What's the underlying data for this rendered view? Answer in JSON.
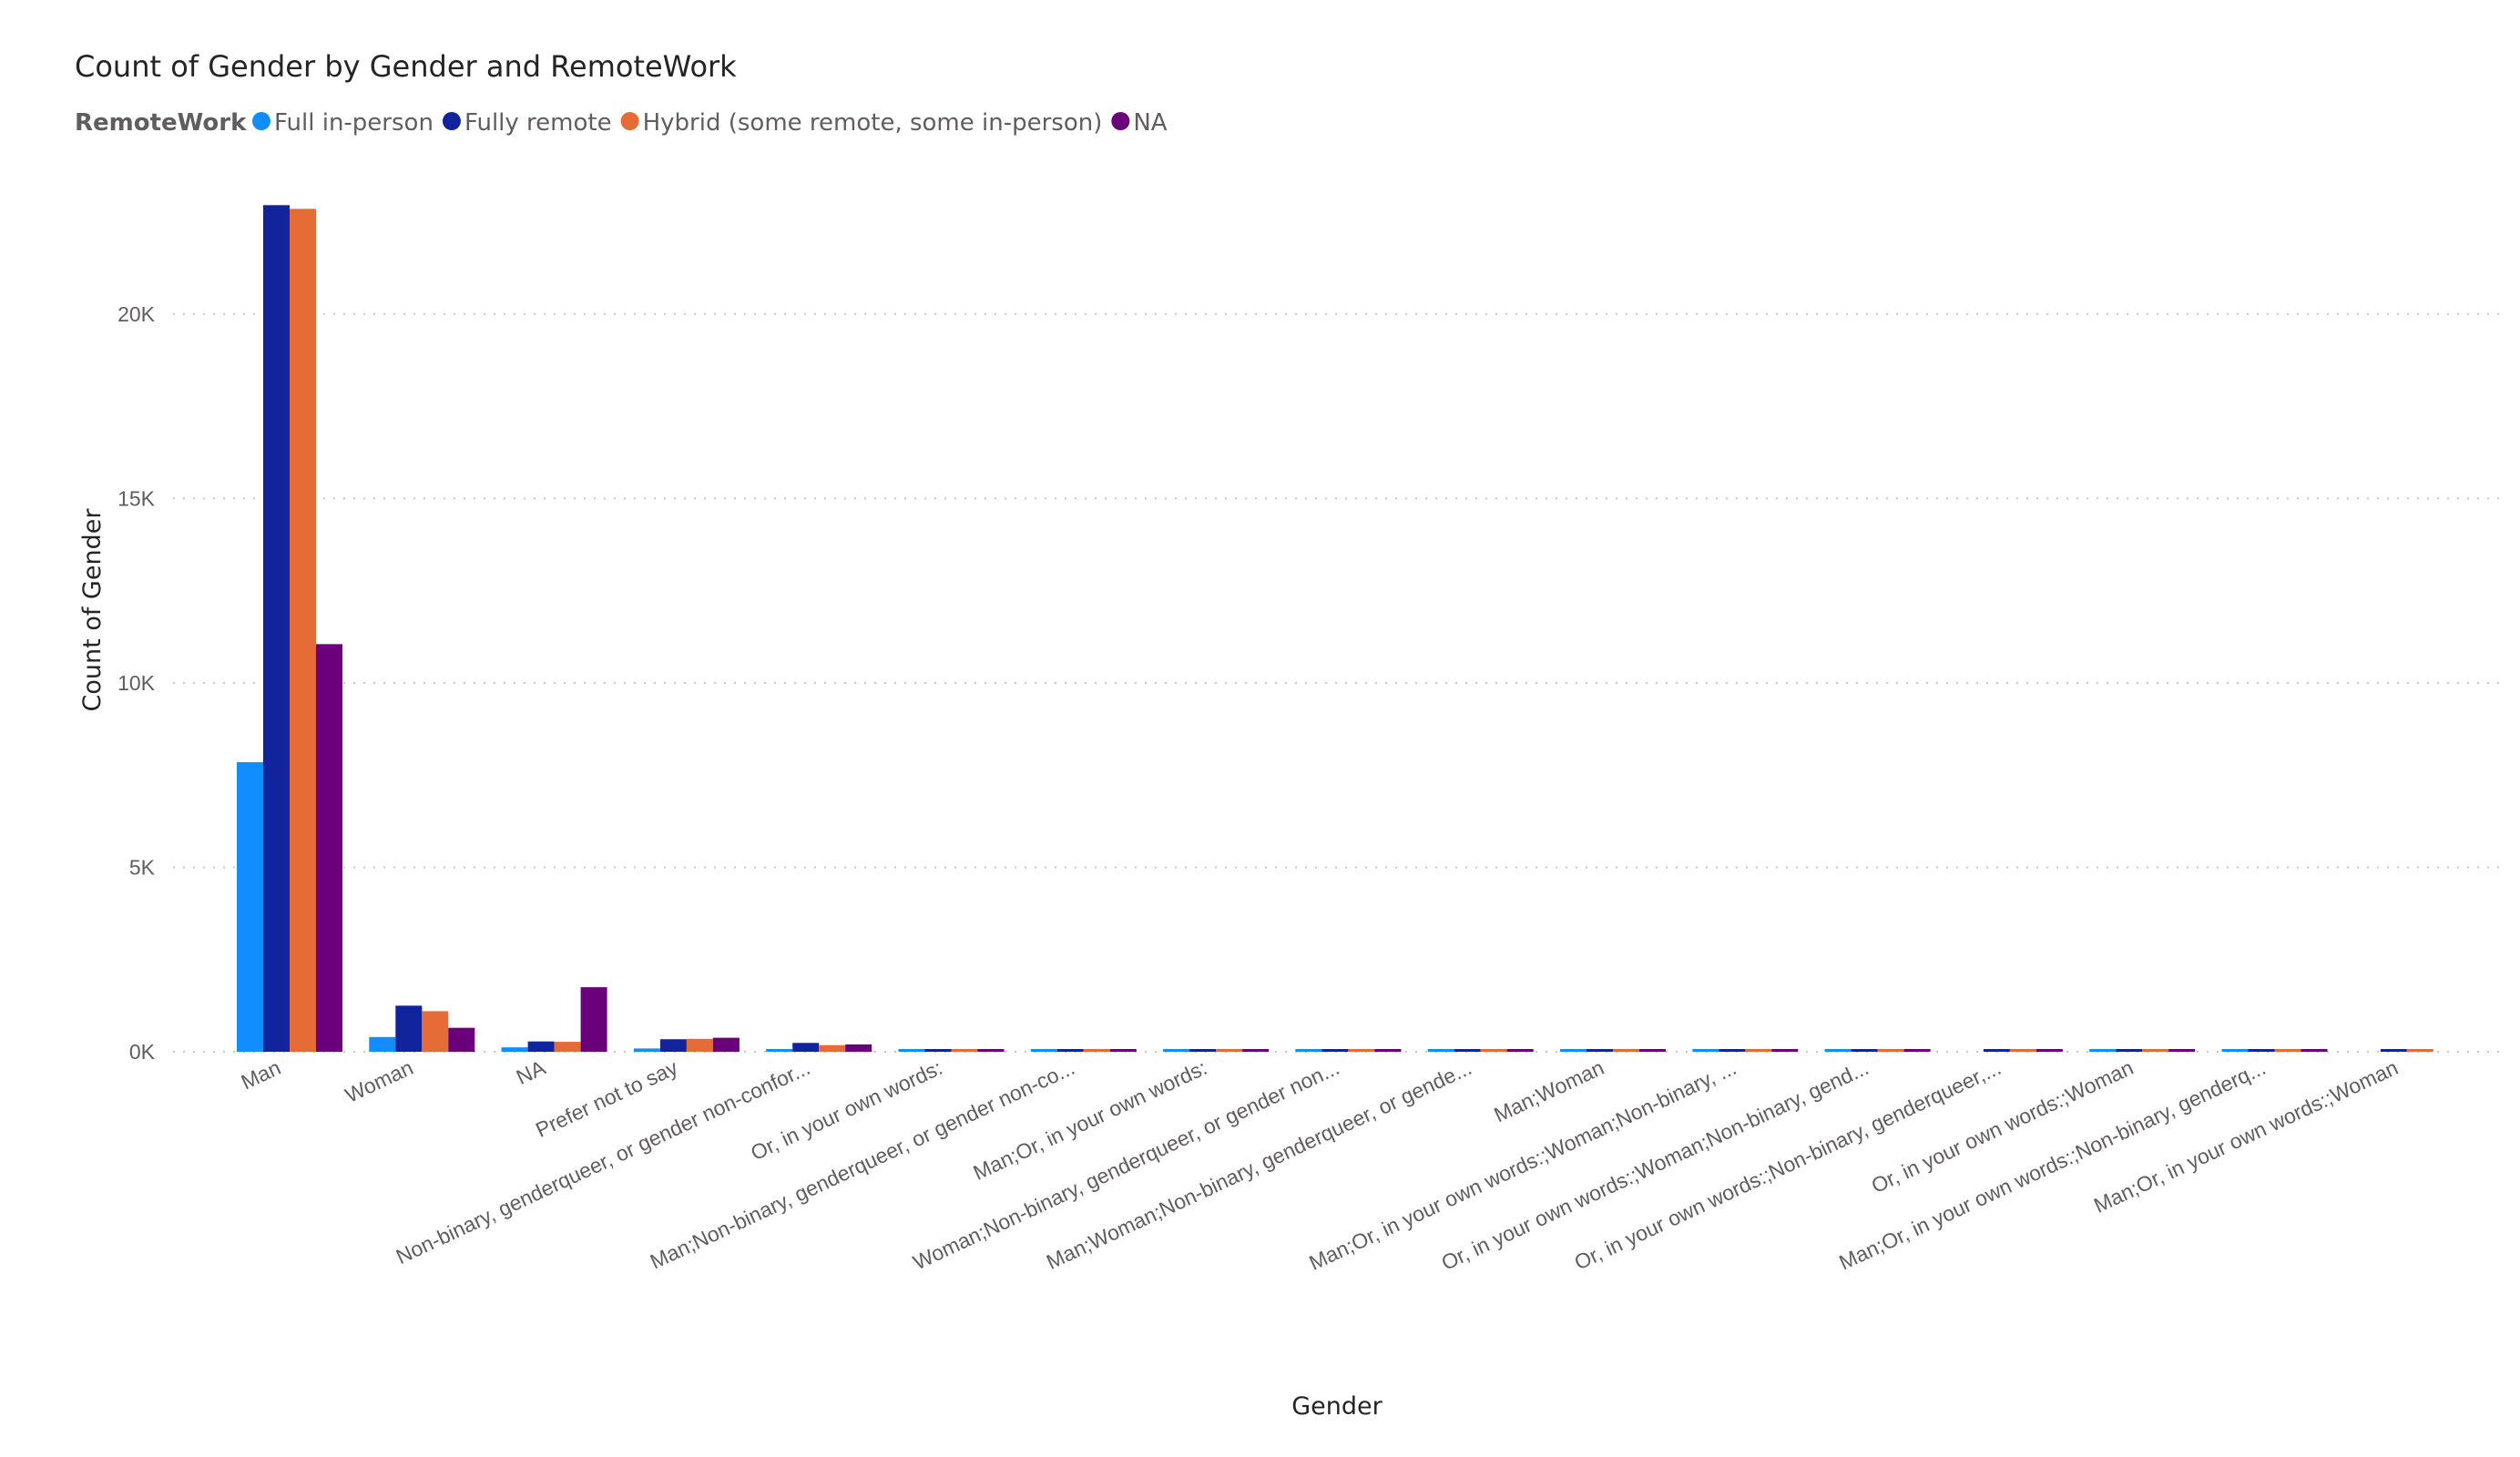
{
  "chart_data": {
    "type": "bar",
    "title": "Count of Gender by Gender and RemoteWork",
    "legend_title": "RemoteWork",
    "legend_position": "top-left",
    "xlabel": "Gender",
    "ylabel": "Count of Gender",
    "ylim": [
      0,
      23000
    ],
    "yticks": [
      0,
      5000,
      10000,
      15000,
      20000
    ],
    "ytick_labels": [
      "0K",
      "5K",
      "10K",
      "15K",
      "20K"
    ],
    "grid": true,
    "categories": [
      "Man",
      "Woman",
      "NA",
      "Prefer not to say",
      "Non-binary, genderqueer, or gender non-confor...",
      "Or, in your own words:",
      "Man;Non-binary, genderqueer, or gender non-co...",
      "Man;Or, in your own words:",
      "Woman;Non-binary, genderqueer, or gender non...",
      "Man;Woman;Non-binary, genderqueer, or gende...",
      "Man;Woman",
      "Man;Or, in your own words:;Woman;Non-binary, ...",
      "Or, in your own words:;Woman;Non-binary, gend...",
      "Or, in your own words:;Non-binary, genderqueer,...",
      "Or, in your own words:;Woman",
      "Man;Or, in your own words:;Non-binary, genderq...",
      "Man;Or, in your own words:;Woman"
    ],
    "series": [
      {
        "name": "Full in-person",
        "color": "#118DFF",
        "values": [
          7850,
          400,
          120,
          90,
          60,
          30,
          20,
          15,
          15,
          12,
          12,
          6,
          6,
          0,
          6,
          4,
          0
        ]
      },
      {
        "name": "Fully remote",
        "color": "#12239E",
        "values": [
          22950,
          1250,
          280,
          340,
          240,
          70,
          70,
          30,
          30,
          25,
          20,
          15,
          15,
          10,
          12,
          10,
          6
        ]
      },
      {
        "name": "Hybrid (some remote, some in-person)",
        "color": "#E66C37",
        "values": [
          22850,
          1100,
          270,
          350,
          180,
          50,
          40,
          25,
          25,
          18,
          18,
          12,
          12,
          8,
          10,
          8,
          5
        ]
      },
      {
        "name": "NA",
        "color": "#6B007B",
        "values": [
          11050,
          650,
          1750,
          380,
          200,
          60,
          40,
          20,
          20,
          15,
          10,
          10,
          8,
          8,
          8,
          6,
          0
        ]
      }
    ]
  }
}
